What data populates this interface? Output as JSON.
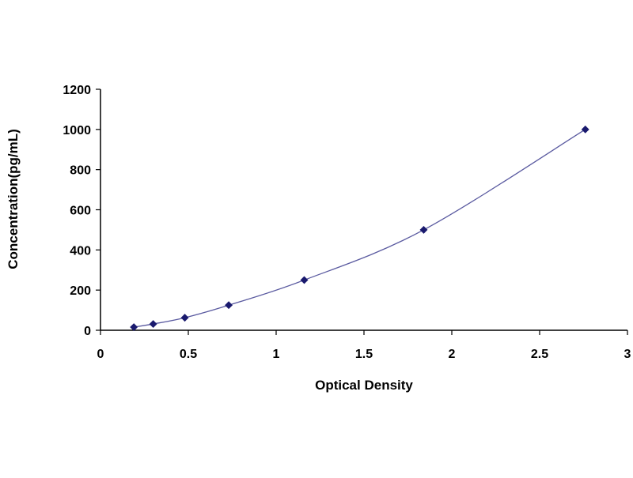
{
  "chart_data": {
    "type": "scatter",
    "title": "",
    "xlabel": "Optical Density",
    "ylabel": "Concentration(pg/mL)",
    "xlim": [
      0,
      3
    ],
    "ylim": [
      0,
      1200
    ],
    "x_ticks": [
      "0",
      "0.5",
      "1",
      "1.5",
      "2",
      "2.5",
      "3"
    ],
    "y_ticks": [
      "0",
      "200",
      "400",
      "600",
      "800",
      "1000",
      "1200"
    ],
    "grid": false,
    "legend": "none",
    "series": [
      {
        "color": "#1a1a6e",
        "curve_color": "#5a5aa0",
        "fit_curve": true,
        "points": [
          {
            "x": 0.19,
            "y": 15.6
          },
          {
            "x": 0.3,
            "y": 31.2
          },
          {
            "x": 0.48,
            "y": 62.5
          },
          {
            "x": 0.73,
            "y": 125
          },
          {
            "x": 1.16,
            "y": 250
          },
          {
            "x": 1.84,
            "y": 500
          },
          {
            "x": 2.76,
            "y": 1000
          }
        ]
      }
    ]
  }
}
